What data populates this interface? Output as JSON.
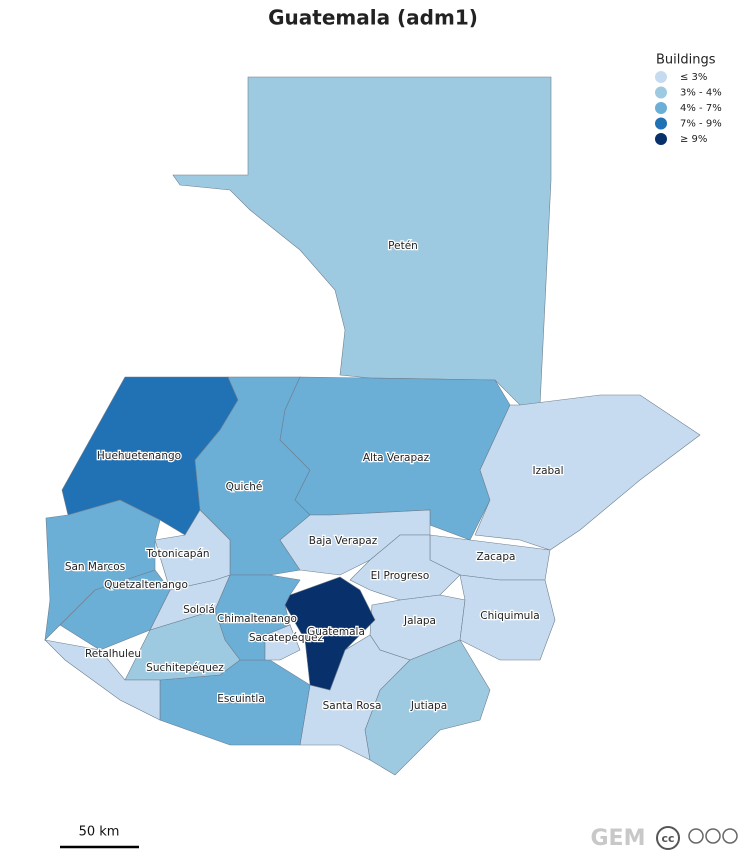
{
  "title": "Guatemala (adm1)",
  "legend": {
    "title": "Buildings",
    "items": [
      {
        "label": "≤ 3%",
        "color": "#c6dbef"
      },
      {
        "label": "3% - 4%",
        "color": "#9ecae1"
      },
      {
        "label": "4% - 7%",
        "color": "#6baed6"
      },
      {
        "label": "7% - 9%",
        "color": "#2171b5"
      },
      {
        "label": "≥ 9%",
        "color": "#08306b"
      }
    ]
  },
  "regions": [
    {
      "label": "Petén",
      "color": "#9ecae1"
    },
    {
      "label": "Huehuetenango",
      "color": "#2171b5"
    },
    {
      "label": "Quiché",
      "color": "#6baed6"
    },
    {
      "label": "Alta Verapaz",
      "color": "#6baed6"
    },
    {
      "label": "Izabal",
      "color": "#c6dbef"
    },
    {
      "label": "Baja Verapaz",
      "color": "#c6dbef"
    },
    {
      "label": "Zacapa",
      "color": "#c6dbef"
    },
    {
      "label": "El Progreso",
      "color": "#c6dbef"
    },
    {
      "label": "Jalapa",
      "color": "#c6dbef"
    },
    {
      "label": "Chiquimula",
      "color": "#c6dbef"
    },
    {
      "label": "Jutiapa",
      "color": "#9ecae1"
    },
    {
      "label": "Santa Rosa",
      "color": "#c6dbef"
    },
    {
      "label": "Escuintla",
      "color": "#6baed6"
    },
    {
      "label": "Chimaltenango",
      "color": "#6baed6"
    },
    {
      "label": "Sacatepéquez",
      "color": "#c6dbef"
    },
    {
      "label": "Suchitepéquez",
      "color": "#9ecae1"
    },
    {
      "label": "Retalhuleu",
      "color": "#c6dbef"
    },
    {
      "label": "Sololá",
      "color": "#c6dbef"
    },
    {
      "label": "Totonicapán",
      "color": "#c6dbef"
    },
    {
      "label": "Quetzaltenango",
      "color": "#6baed6"
    },
    {
      "label": "San Marcos",
      "color": "#6baed6"
    },
    {
      "label": "Guatemala",
      "color": "#08306b"
    }
  ],
  "scale_bar": "50 km",
  "logo": "GEM",
  "license": "cc"
}
